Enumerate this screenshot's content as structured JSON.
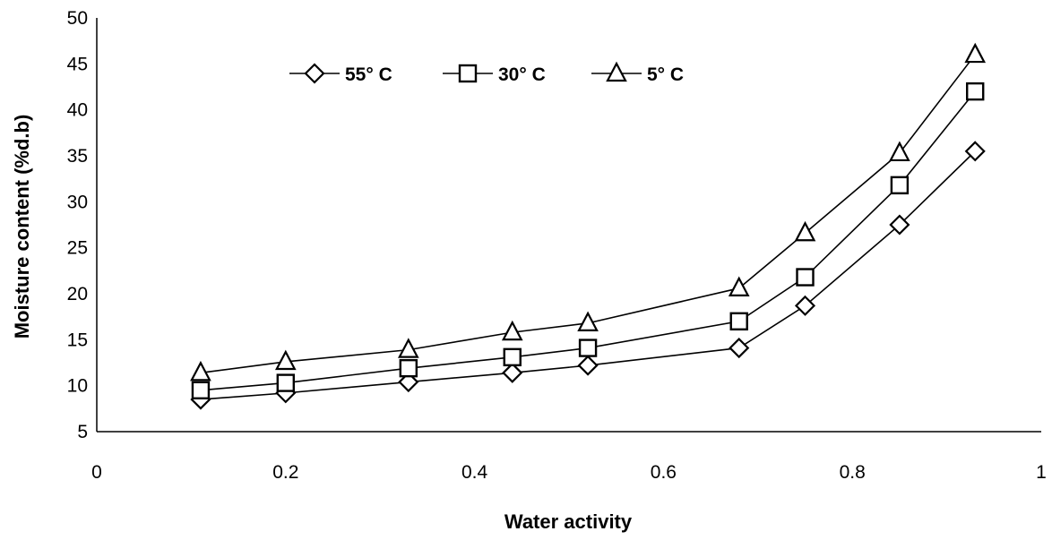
{
  "chart_data": {
    "type": "line",
    "title": "",
    "xlabel": "Water activity",
    "ylabel": "Moisture content (%d.b)",
    "xlim": [
      0,
      1
    ],
    "ylim": [
      5,
      50
    ],
    "xticks": [
      0,
      0.2,
      0.4,
      0.6,
      0.8,
      1
    ],
    "xtick_labels": [
      "0",
      "0.2",
      "0.4",
      "0.6",
      "0.8",
      "1"
    ],
    "yticks": [
      5,
      10,
      15,
      20,
      25,
      30,
      35,
      40,
      45,
      50
    ],
    "ytick_labels": [
      "5",
      "10",
      "15",
      "20",
      "25",
      "30",
      "35",
      "40",
      "45",
      "50"
    ],
    "grid": false,
    "legend_position": "top-center",
    "x": [
      0.11,
      0.2,
      0.33,
      0.44,
      0.52,
      0.68,
      0.75,
      0.85,
      0.93
    ],
    "series": [
      {
        "name": "55° C",
        "marker": "diamond",
        "values": [
          8.5,
          9.2,
          10.4,
          11.4,
          12.2,
          14.1,
          18.7,
          27.5,
          35.5
        ]
      },
      {
        "name": "30° C",
        "marker": "square",
        "values": [
          9.5,
          10.3,
          11.9,
          13.1,
          14.1,
          17.0,
          21.8,
          31.8,
          42.0
        ]
      },
      {
        "name": "5° C",
        "marker": "triangle",
        "values": [
          11.4,
          12.6,
          13.9,
          15.8,
          16.8,
          20.6,
          26.6,
          35.3,
          46.0
        ]
      }
    ],
    "colors": {
      "line": "#000000",
      "marker_fill": "#ffffff",
      "axis": "#000000"
    }
  }
}
